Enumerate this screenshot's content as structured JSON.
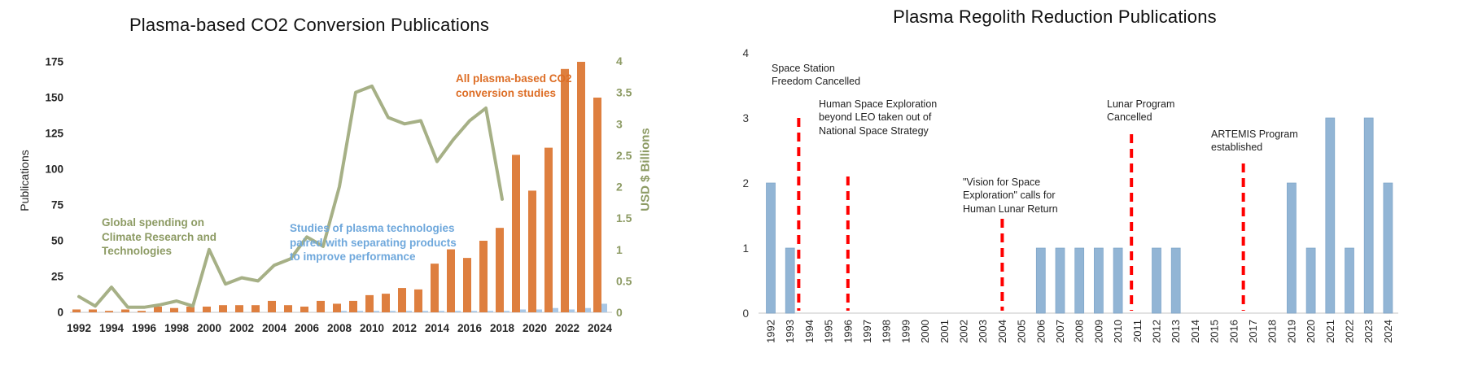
{
  "page": {
    "background": "#ffffff"
  },
  "chart_data": [
    {
      "id": "co2",
      "type": "combo-bar-line",
      "title": "Plasma-based CO2 Conversion Publications",
      "ylabel_left": "Publications",
      "ylabel_right": "USD $ Billions",
      "ylim_left": [
        0,
        175
      ],
      "ytick_step_left": 25,
      "ylim_right": [
        0,
        4
      ],
      "ytick_step_right": 0.5,
      "x_tick_step": 2,
      "grid": false,
      "legend_position": "none",
      "x": [
        1992,
        1993,
        1994,
        1995,
        1996,
        1997,
        1998,
        1999,
        2000,
        2001,
        2002,
        2003,
        2004,
        2005,
        2006,
        2007,
        2008,
        2009,
        2010,
        2011,
        2012,
        2013,
        2014,
        2015,
        2016,
        2017,
        2018,
        2019,
        2020,
        2021,
        2022,
        2023,
        2024
      ],
      "series": [
        {
          "name": "All plasma-based CO2 conversion studies",
          "type": "bar",
          "axis": "left",
          "color": "#DE7F3F",
          "values": [
            2,
            2,
            1,
            2,
            1,
            4,
            3,
            4,
            4,
            5,
            5,
            5,
            8,
            5,
            4,
            8,
            6,
            8,
            12,
            13,
            17,
            16,
            34,
            44,
            38,
            50,
            59,
            110,
            85,
            115,
            170,
            175,
            150
          ]
        },
        {
          "name": "Studies of plasma technologies paired with separating products to improve performance",
          "type": "bar",
          "axis": "left",
          "color": "#A9C7E5",
          "values": [
            0,
            0,
            0,
            0,
            0,
            0,
            0,
            0,
            0,
            0,
            0,
            0,
            0,
            0,
            0,
            0,
            1,
            1,
            1,
            1,
            1,
            1,
            1,
            1,
            1,
            1,
            1,
            2,
            2,
            3,
            2,
            3,
            6
          ]
        },
        {
          "name": "Global spending on Climate Research and Technologies",
          "type": "line",
          "axis": "right",
          "color": "#A6B086",
          "values": [
            0.25,
            0.1,
            0.4,
            0.08,
            0.08,
            0.12,
            0.18,
            0.1,
            1.0,
            0.45,
            0.55,
            0.5,
            0.75,
            0.85,
            1.2,
            1.05,
            2.0,
            3.5,
            3.6,
            3.1,
            3.0,
            3.05,
            2.4,
            2.75,
            3.05,
            3.25,
            1.8,
            null,
            null,
            null,
            null,
            null,
            null
          ]
        }
      ],
      "annotations": [
        {
          "name": "global-spending",
          "text": "Global spending on\nClimate Research and\nTechnologies",
          "color": "#8D9B64"
        },
        {
          "name": "plasma-separation",
          "text": "Studies of plasma technologies\npaired with separating products\nto improve performance",
          "color": "#6FA8DC"
        },
        {
          "name": "all-plasma",
          "text": "All plasma-based CO2\nconversion studies",
          "color": "#DD6E26"
        }
      ]
    },
    {
      "id": "regolith",
      "type": "bar",
      "title": "Plasma Regolith Reduction Publications",
      "ylim": [
        0,
        4
      ],
      "ytick_step": 1,
      "x_tick_step": 1,
      "grid": false,
      "bar_color": "#92B5D5",
      "bar_edge_color": "#7FA5C9",
      "event_line_color": "#FF0000",
      "x": [
        1992,
        1993,
        1994,
        1995,
        1996,
        1997,
        1998,
        1999,
        2000,
        2001,
        2002,
        2003,
        2004,
        2005,
        2006,
        2007,
        2008,
        2009,
        2010,
        2011,
        2012,
        2013,
        2014,
        2015,
        2016,
        2017,
        2018,
        2019,
        2020,
        2021,
        2022,
        2023,
        2024
      ],
      "values": [
        2,
        1,
        0,
        0,
        0,
        0,
        0,
        0,
        0,
        0,
        0,
        0,
        0,
        0,
        1,
        1,
        1,
        1,
        1,
        0,
        1,
        1,
        0,
        0,
        0,
        0,
        0,
        2,
        1,
        3,
        1,
        3,
        2
      ],
      "event_lines": [
        {
          "x": 1993.45,
          "top": 3.0,
          "label": "Space Station\nFreedom Cancelled"
        },
        {
          "x": 1996.0,
          "top": 2.1,
          "label": "Human Space Exploration\nbeyond LEO taken out of\nNational Space Strategy"
        },
        {
          "x": 2004.0,
          "top": 1.45,
          "label": "\"Vision for Space\nExploration\" calls for\nHuman Lunar Return"
        },
        {
          "x": 2010.7,
          "top": 2.75,
          "label": "Lunar Program\nCancelled"
        },
        {
          "x": 2016.5,
          "top": 2.3,
          "label": "ARTEMIS Program\nestablished"
        }
      ]
    }
  ]
}
